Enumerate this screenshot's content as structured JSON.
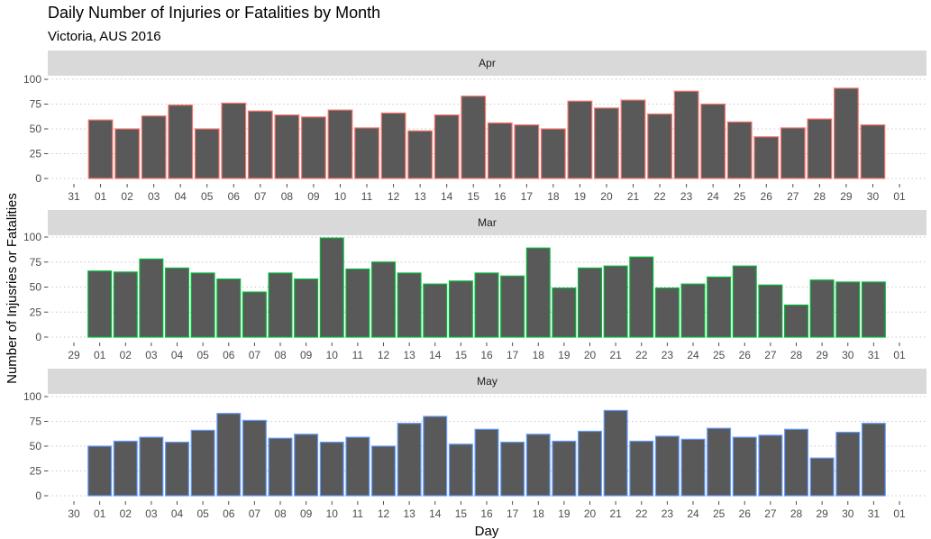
{
  "chart_data": {
    "type": "bar",
    "title": "Daily Number of Injuries or Fatalities by Month",
    "subtitle": "Victoria, AUS 2016",
    "xlabel": "Day",
    "ylabel": "Number of Injusries or Fatalities",
    "ylim": [
      0,
      100
    ],
    "y_ticks": [
      0,
      25,
      50,
      75,
      100
    ],
    "grid": "horizontal dotted",
    "colors": {
      "bar_fill": "#595959",
      "strip": "#d9d9d9",
      "Apr": "#f8766d",
      "Mar": "#00ba38",
      "May": "#619cff"
    },
    "panels": [
      {
        "name": "Apr",
        "x_ticks": [
          "31",
          "01",
          "02",
          "03",
          "04",
          "05",
          "06",
          "07",
          "08",
          "09",
          "10",
          "11",
          "12",
          "13",
          "14",
          "15",
          "16",
          "17",
          "18",
          "19",
          "20",
          "21",
          "22",
          "23",
          "24",
          "25",
          "26",
          "27",
          "28",
          "29",
          "30",
          "01"
        ],
        "days": [
          "01",
          "02",
          "03",
          "04",
          "05",
          "06",
          "07",
          "08",
          "09",
          "10",
          "11",
          "12",
          "13",
          "14",
          "15",
          "16",
          "17",
          "18",
          "19",
          "20",
          "21",
          "22",
          "23",
          "24",
          "25",
          "26",
          "27",
          "28",
          "29",
          "30"
        ],
        "values": [
          59,
          50,
          63,
          74,
          50,
          76,
          68,
          64,
          62,
          69,
          51,
          66,
          48,
          64,
          83,
          56,
          54,
          50,
          78,
          71,
          79,
          65,
          88,
          75,
          57,
          42,
          51,
          60,
          91,
          54
        ]
      },
      {
        "name": "Mar",
        "x_ticks": [
          "29",
          "01",
          "02",
          "03",
          "04",
          "05",
          "06",
          "07",
          "08",
          "09",
          "10",
          "11",
          "12",
          "13",
          "14",
          "15",
          "16",
          "17",
          "18",
          "19",
          "20",
          "21",
          "22",
          "23",
          "24",
          "25",
          "26",
          "27",
          "28",
          "29",
          "30",
          "31",
          "01"
        ],
        "days": [
          "01",
          "02",
          "03",
          "04",
          "05",
          "06",
          "07",
          "08",
          "09",
          "10",
          "11",
          "12",
          "13",
          "14",
          "15",
          "16",
          "17",
          "18",
          "19",
          "20",
          "21",
          "22",
          "23",
          "24",
          "25",
          "26",
          "27",
          "28",
          "29",
          "30",
          "31"
        ],
        "values": [
          66,
          65,
          78,
          69,
          64,
          58,
          45,
          64,
          58,
          99,
          68,
          75,
          64,
          53,
          56,
          64,
          61,
          89,
          49,
          69,
          71,
          80,
          49,
          53,
          60,
          71,
          52,
          32,
          57,
          55,
          55
        ]
      },
      {
        "name": "May",
        "x_ticks": [
          "30",
          "01",
          "02",
          "03",
          "04",
          "05",
          "06",
          "07",
          "08",
          "09",
          "10",
          "11",
          "12",
          "13",
          "14",
          "15",
          "16",
          "17",
          "18",
          "19",
          "20",
          "21",
          "22",
          "23",
          "24",
          "25",
          "26",
          "27",
          "28",
          "29",
          "30",
          "31",
          "01"
        ],
        "days": [
          "01",
          "02",
          "03",
          "04",
          "05",
          "06",
          "07",
          "08",
          "09",
          "10",
          "11",
          "12",
          "13",
          "14",
          "15",
          "16",
          "17",
          "18",
          "19",
          "20",
          "21",
          "22",
          "23",
          "24",
          "25",
          "26",
          "27",
          "28",
          "29",
          "30",
          "31"
        ],
        "values": [
          50,
          55,
          59,
          54,
          66,
          83,
          76,
          58,
          62,
          54,
          59,
          50,
          73,
          80,
          52,
          67,
          54,
          62,
          55,
          65,
          86,
          55,
          60,
          57,
          68,
          59,
          61,
          67,
          38,
          64,
          73
        ]
      }
    ]
  }
}
